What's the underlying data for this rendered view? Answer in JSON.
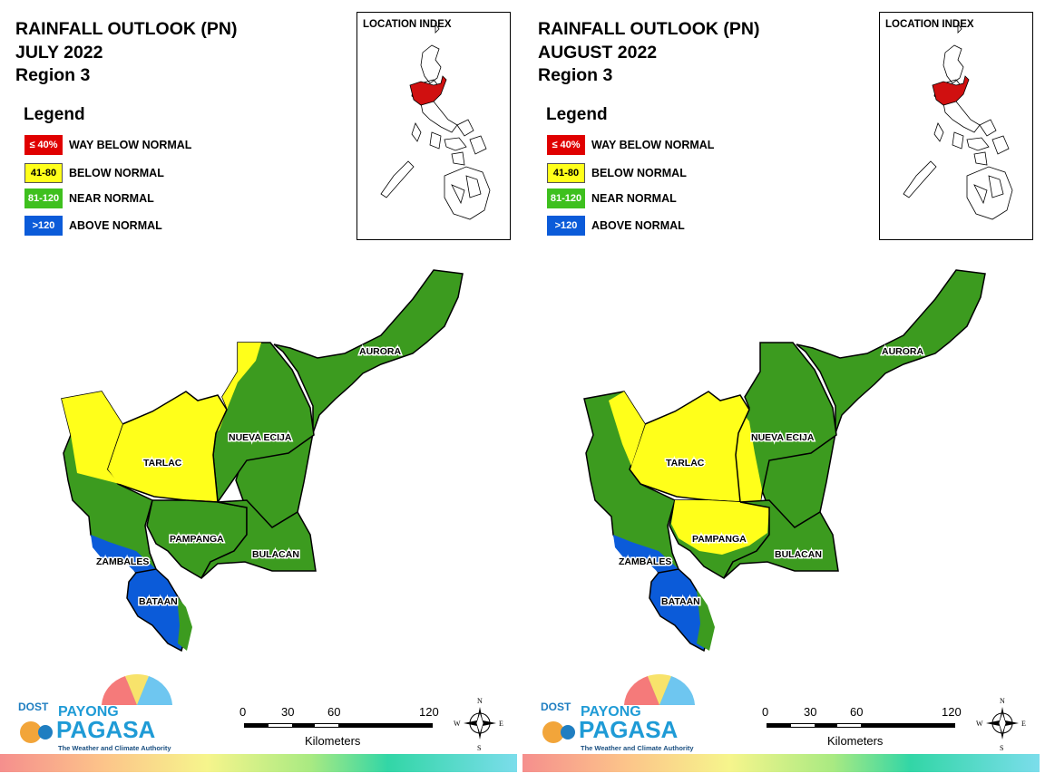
{
  "colors": {
    "way_below": "#e00000",
    "below": "#ffff1a",
    "near": "#3c9b1f",
    "above": "#0b5bd9",
    "loc_highlight": "#d01010"
  },
  "legend_categories": [
    {
      "range": "≤ 40%",
      "label": "WAY BELOW NORMAL",
      "color": "#e00000",
      "text_color": "#ffffff"
    },
    {
      "range": "41-80",
      "label": "BELOW NORMAL",
      "color": "#ffff1a",
      "text_color": "#000000"
    },
    {
      "range": "81-120",
      "label": "NEAR NORMAL",
      "color": "#3c9b1f",
      "text_color": "#ffffff"
    },
    {
      "range": ">120",
      "label": "ABOVE NORMAL",
      "color": "#0b5bd9",
      "text_color": "#ffffff"
    }
  ],
  "panels": [
    {
      "title": "RAINFALL OUTLOOK (PN)",
      "month": "JULY 2022",
      "region": "Region 3",
      "legend_title": "Legend",
      "location_index_caption": "LOCATION INDEX",
      "provinces": [
        {
          "name": "AURORA",
          "category": "near"
        },
        {
          "name": "NUEVA ECIJA",
          "category": "near"
        },
        {
          "name": "TARLAC",
          "category": "below"
        },
        {
          "name": "PAMPANGA",
          "category": "near"
        },
        {
          "name": "BULACAN",
          "category": "near"
        },
        {
          "name": "ZAMBALES",
          "category": "near"
        },
        {
          "name": "BATAAN",
          "category": "above"
        }
      ],
      "scale_ticks": [
        "0",
        "30",
        "60",
        "120"
      ],
      "scale_unit": "Kilometers",
      "compass": {
        "n": "N",
        "s": "S",
        "e": "E",
        "w": "W"
      },
      "logo": {
        "agency": "DOST",
        "brand_top": "PAYONG",
        "brand_bottom": "PAGASA",
        "tagline": "The Weather and Climate Authority"
      }
    },
    {
      "title": "RAINFALL OUTLOOK (PN)",
      "month": "AUGUST 2022",
      "region": "Region 3",
      "legend_title": "Legend",
      "location_index_caption": "LOCATION INDEX",
      "provinces": [
        {
          "name": "AURORA",
          "category": "near"
        },
        {
          "name": "NUEVA ECIJA",
          "category": "near"
        },
        {
          "name": "TARLAC",
          "category": "below"
        },
        {
          "name": "PAMPANGA",
          "category": "below"
        },
        {
          "name": "BULACAN",
          "category": "near"
        },
        {
          "name": "ZAMBALES",
          "category": "near"
        },
        {
          "name": "BATAAN",
          "category": "above"
        }
      ],
      "scale_ticks": [
        "0",
        "30",
        "60",
        "120"
      ],
      "scale_unit": "Kilometers",
      "compass": {
        "n": "N",
        "s": "S",
        "e": "E",
        "w": "W"
      },
      "logo": {
        "agency": "DOST",
        "brand_top": "PAYONG",
        "brand_bottom": "PAGASA",
        "tagline": "The Weather and Climate Authority"
      }
    }
  ]
}
